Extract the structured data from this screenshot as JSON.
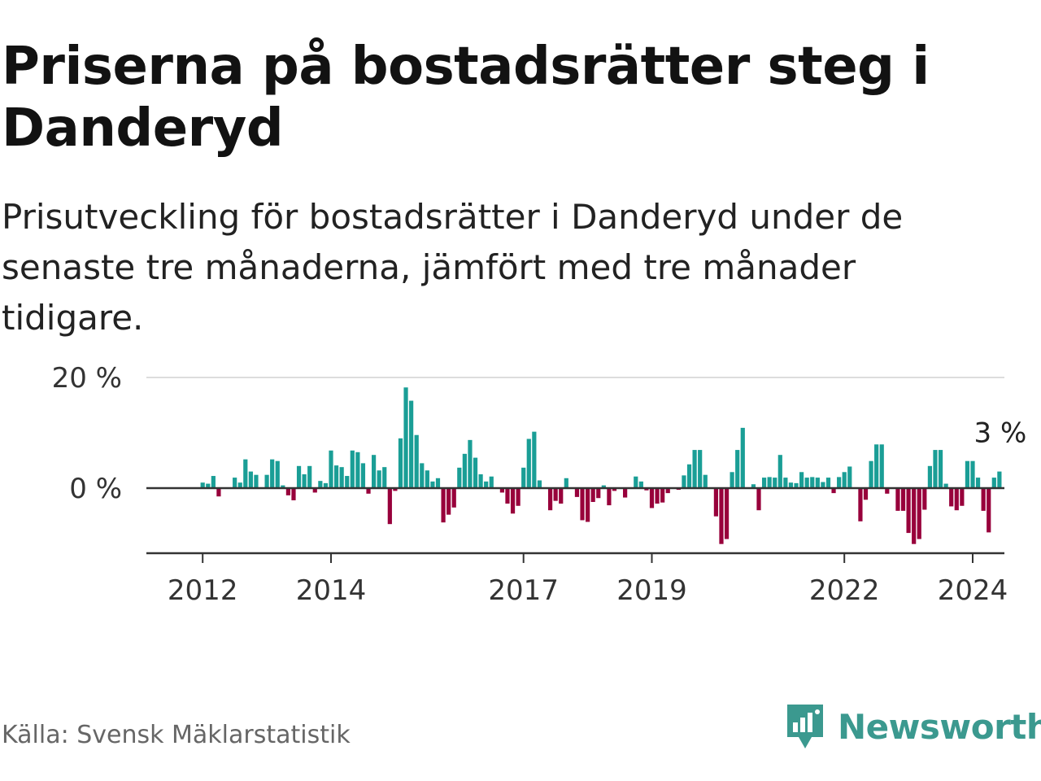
{
  "title": "Priserna på bostadsrätter steg i Danderyd",
  "subtitle": "Prisutveckling för bostadsrätter i Danderyd under de senaste tre månaderna, jämfört med tre månader tidigare.",
  "source": "Källa: Svensk Mäklarstatistik",
  "brand": "Newsworthy",
  "colors": {
    "positive": "#1a9e96",
    "negative": "#98003b",
    "axis": "#333333",
    "grid": "#dddddd",
    "brand": "#3b998f"
  },
  "chart_data": {
    "type": "bar",
    "title": "",
    "xlabel": "",
    "ylabel": "",
    "ylim": [
      -12,
      20
    ],
    "y_ticks": [
      {
        "value": 0,
        "label": "0 %"
      },
      {
        "value": 20,
        "label": "20 %"
      }
    ],
    "x_ticks": [
      {
        "month_index": 12,
        "label": "2012"
      },
      {
        "month_index": 36,
        "label": "2014"
      },
      {
        "month_index": 72,
        "label": "2017"
      },
      {
        "month_index": 96,
        "label": "2019"
      },
      {
        "month_index": 132,
        "label": "2022"
      },
      {
        "month_index": 156,
        "label": "2024"
      }
    ],
    "start": "2011-01",
    "values": [
      0,
      0,
      0,
      0,
      0,
      0,
      0,
      0,
      0,
      0,
      0,
      0,
      1,
      0.8,
      2.2,
      -1.5,
      0,
      0,
      1.9,
      1,
      5.2,
      3,
      2.4,
      0,
      2.4,
      5.2,
      4.9,
      0.5,
      -1.3,
      -2.2,
      4,
      2.5,
      4,
      -0.8,
      1.3,
      0.9,
      6.8,
      4.1,
      3.8,
      2.2,
      6.8,
      6.5,
      4.5,
      -1,
      6,
      3.2,
      3.8,
      -6.5,
      -0.5,
      9,
      18.2,
      15.8,
      9.6,
      4.5,
      3.2,
      1.2,
      1.8,
      -6.2,
      -4.8,
      -3.5,
      3.7,
      6.2,
      8.7,
      5.5,
      2.5,
      1.2,
      2.1,
      0,
      -0.8,
      -2.8,
      -4.6,
      -3.2,
      3.7,
      8.9,
      10.2,
      1.4,
      0,
      -4,
      -2.3,
      -2.8,
      1.8,
      0,
      -1.6,
      -5.8,
      -6.1,
      -2.5,
      -1.8,
      0.5,
      -3.1,
      -0.5,
      0,
      -1.7,
      0,
      2.1,
      1.2,
      -0.4,
      -3.6,
      -2.8,
      -2.6,
      -0.9,
      0,
      -0.3,
      2.3,
      4.3,
      6.9,
      6.9,
      2.4,
      0,
      -5.1,
      -10.1,
      -9.2,
      2.9,
      6.9,
      10.9,
      0,
      0.7,
      -4,
      1.9,
      2,
      1.9,
      6,
      1.9,
      1,
      0.9,
      2.9,
      1.9,
      2,
      1.9,
      1.1,
      1.9,
      -0.9,
      2,
      2.9,
      3.9,
      0,
      -6,
      -2.1,
      4.9,
      7.9,
      7.9,
      -1,
      0,
      -4.1,
      -4.1,
      -8.1,
      -10.1,
      -9.2,
      -3.9,
      4,
      6.9,
      6.9,
      0.8,
      -3.3,
      -4,
      -3.2,
      4.9,
      4.9,
      1.9,
      -4.1,
      -8,
      1.9,
      3
    ],
    "last_label": "3 %"
  }
}
